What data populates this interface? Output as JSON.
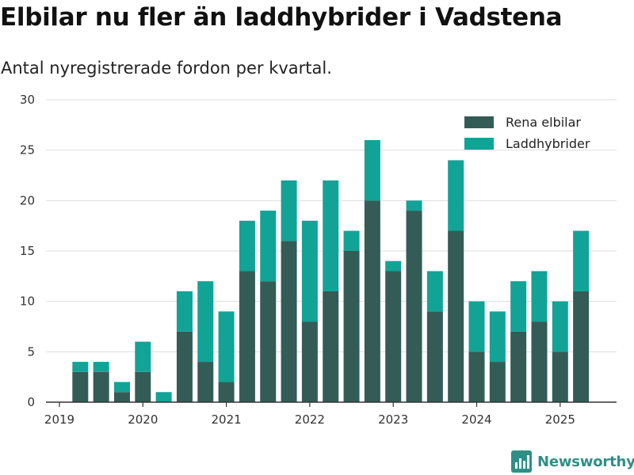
{
  "title": "Elbilar nu fler än laddhybrider i Vadstena",
  "subtitle": "Antal nyregistrerade fordon per kvartal.",
  "brand": {
    "name": "Newsworthy",
    "icon": "bar-chart-logo-icon"
  },
  "colors": {
    "elbilar": "#335c56",
    "laddhybrider": "#12a397",
    "grid": "#dddddd",
    "axis": "#333333",
    "brand": "#2f8f87"
  },
  "chart_data": {
    "type": "bar",
    "stacked": true,
    "categories": [
      "2019 Q2",
      "2019 Q3",
      "2019 Q4",
      "2020 Q1",
      "2020 Q2",
      "2020 Q3",
      "2020 Q4",
      "2021 Q1",
      "2021 Q2",
      "2021 Q3",
      "2021 Q4",
      "2022 Q1",
      "2022 Q2",
      "2022 Q3",
      "2022 Q4",
      "2023 Q1",
      "2023 Q2",
      "2023 Q3",
      "2023 Q4",
      "2024 Q1",
      "2024 Q2",
      "2024 Q3",
      "2024 Q4",
      "2025 Q1",
      "2025 Q2"
    ],
    "series": [
      {
        "name": "Rena elbilar",
        "values": [
          3,
          3,
          1,
          3,
          0,
          7,
          4,
          2,
          13,
          12,
          16,
          8,
          11,
          15,
          20,
          13,
          19,
          9,
          17,
          5,
          4,
          7,
          8,
          5,
          11
        ]
      },
      {
        "name": "Laddhybrider",
        "values": [
          1,
          1,
          1,
          3,
          1,
          4,
          8,
          7,
          5,
          7,
          6,
          10,
          11,
          2,
          6,
          1,
          1,
          4,
          7,
          5,
          5,
          5,
          5,
          5,
          6
        ]
      }
    ],
    "x_tick_labels": [
      "2019",
      "2020",
      "2021",
      "2022",
      "2023",
      "2024",
      "2025"
    ],
    "y_ticks": [
      0,
      5,
      10,
      15,
      20,
      25,
      30
    ],
    "ylim": [
      0,
      30
    ],
    "grid": true,
    "legend_position": "top-right"
  }
}
